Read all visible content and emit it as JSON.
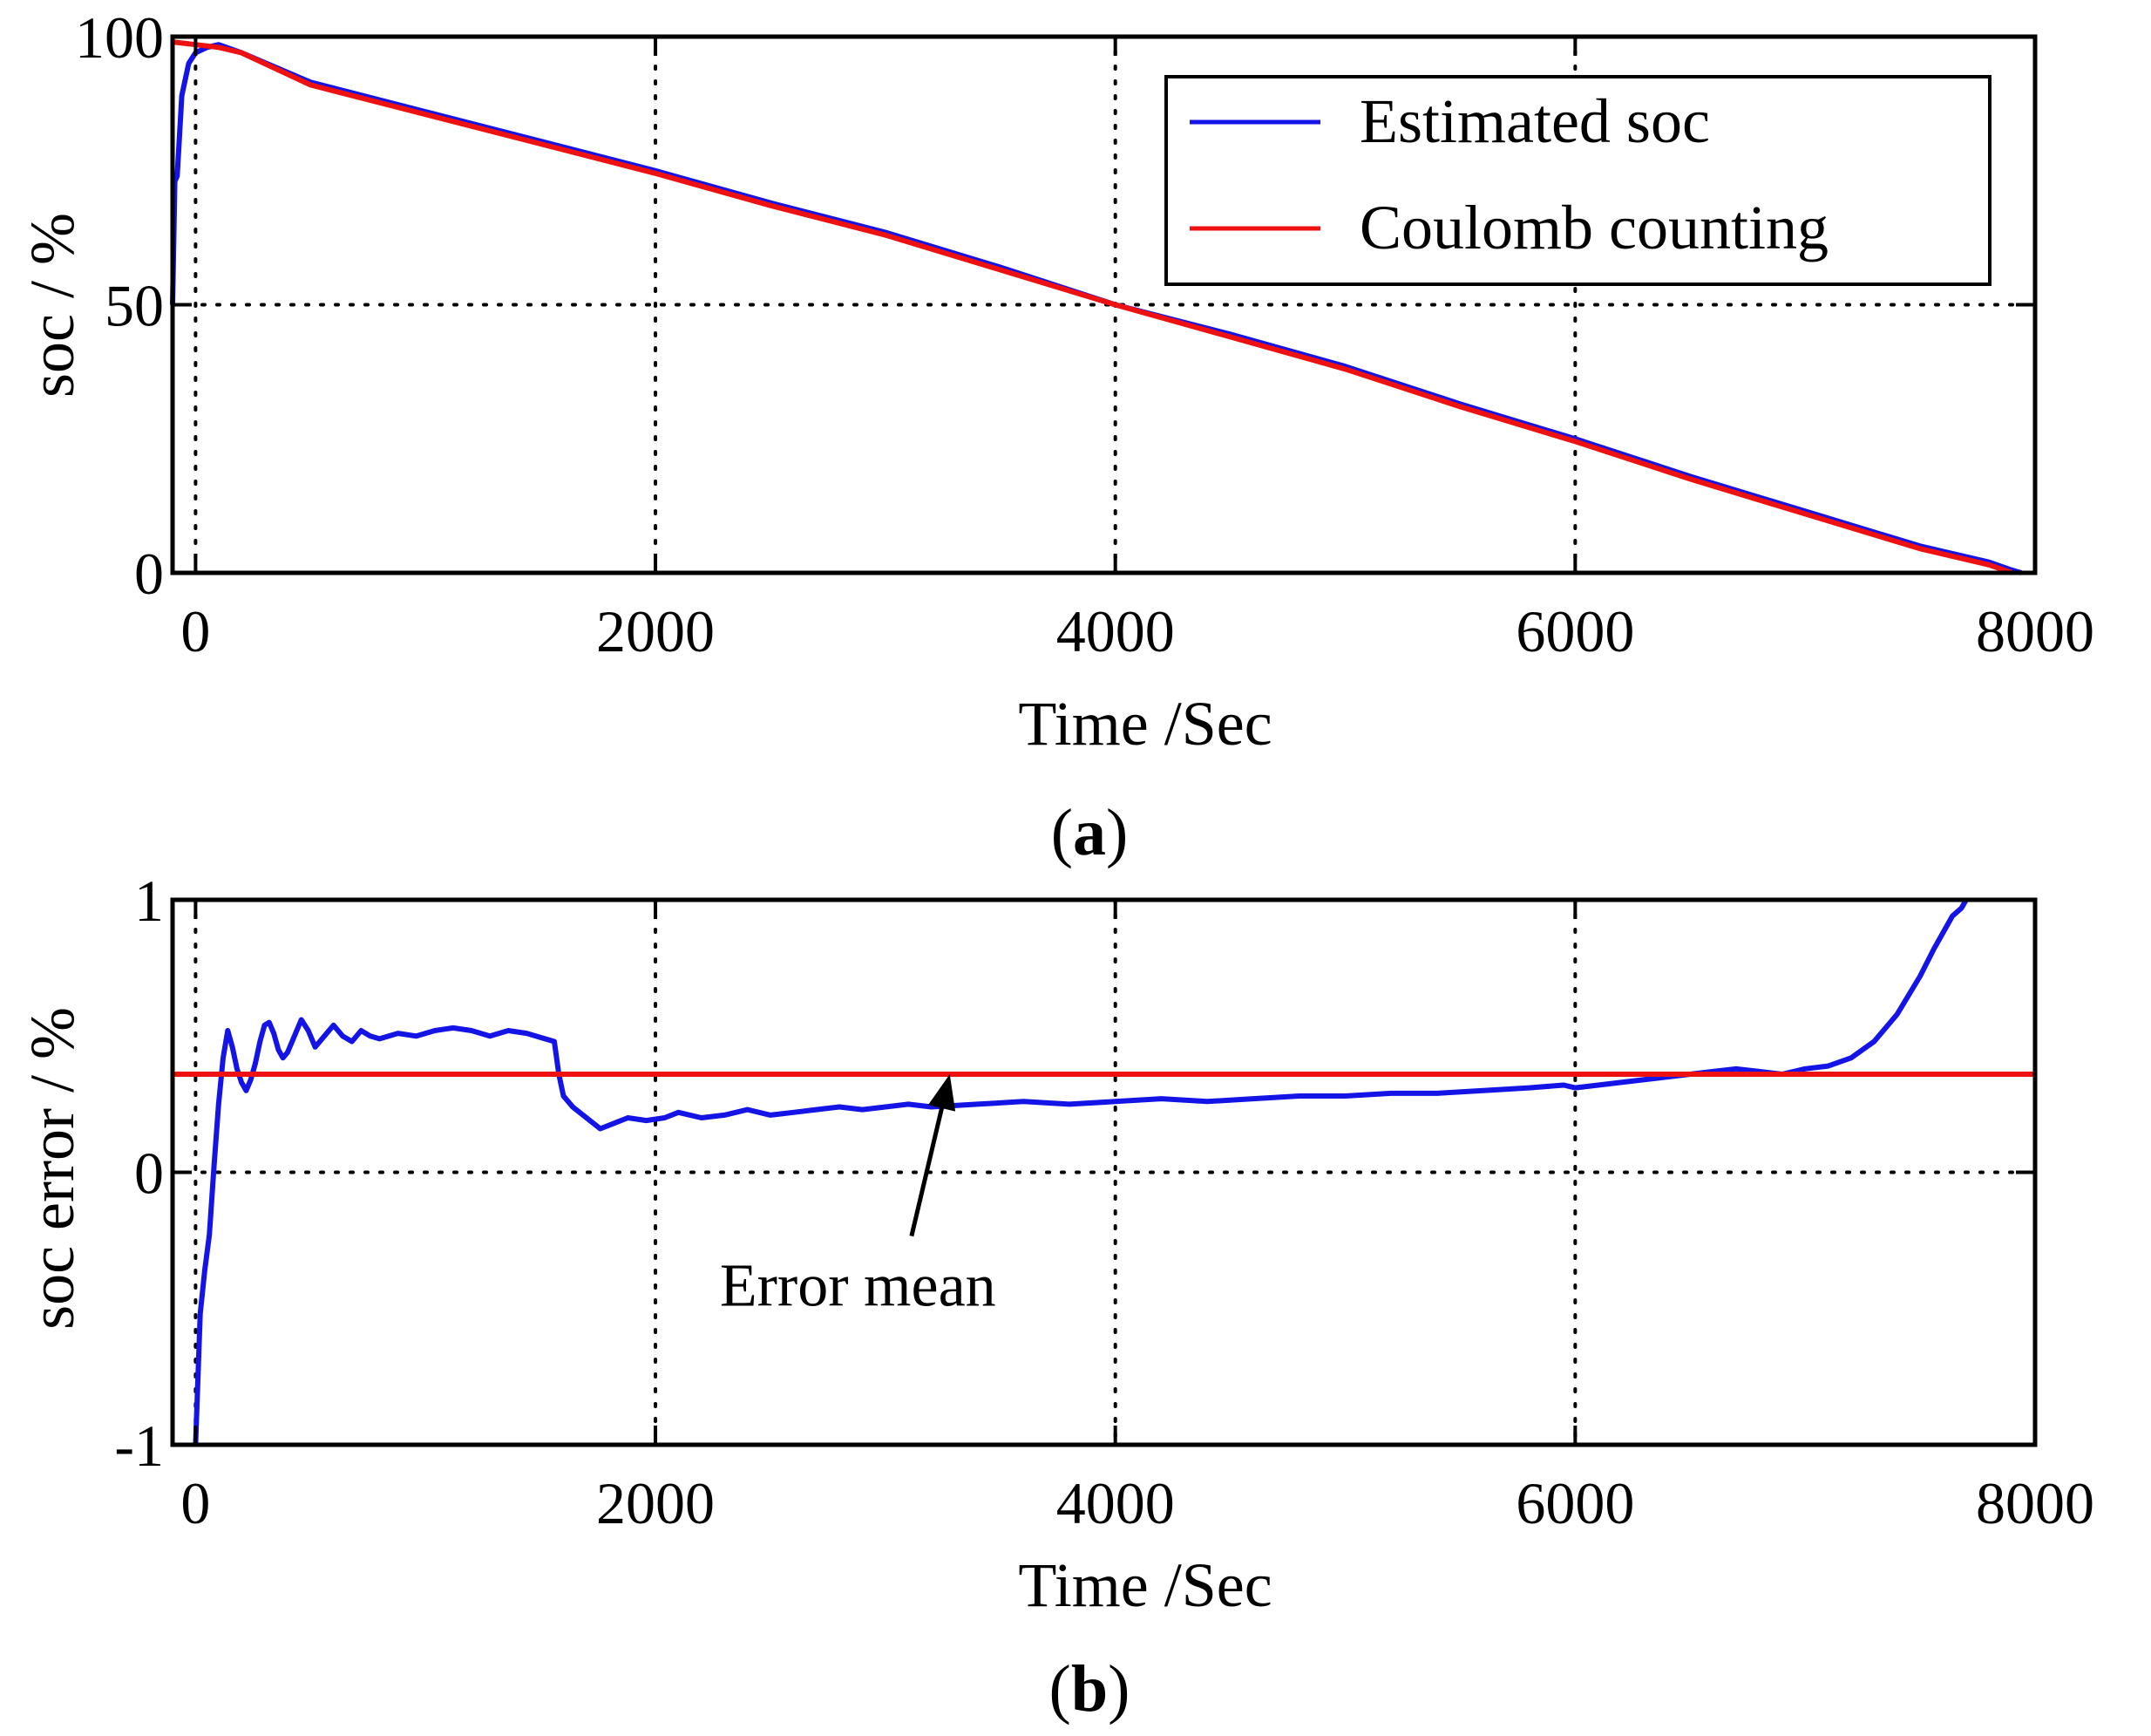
{
  "colors": {
    "estimated": "#1414e6",
    "coulomb": "#ee1111",
    "mean": "#ee1111",
    "axes": "#000000"
  },
  "chart_data": [
    {
      "id": "a",
      "type": "line",
      "panel_label": "a",
      "xlabel": "Time /Sec",
      "ylabel": "soc / %",
      "xlim": [
        -100,
        8000
      ],
      "ylim": [
        0,
        100
      ],
      "xticks": [
        0,
        2000,
        4000,
        6000,
        8000
      ],
      "xtick_labels": [
        "0",
        "2000",
        "4000",
        "6000",
        "8000"
      ],
      "yticks": [
        0,
        50,
        100
      ],
      "ytick_labels": [
        "0",
        "50",
        "100"
      ],
      "grid": true,
      "legend_position": "top-right",
      "series": [
        {
          "name": "Estimated soc",
          "color_key": "estimated",
          "x": [
            -100,
            -90,
            -80,
            -60,
            -30,
            0,
            50,
            100,
            200,
            500,
            1000,
            1500,
            2000,
            2500,
            3000,
            3500,
            4000,
            4500,
            5000,
            5500,
            6000,
            6500,
            7000,
            7500,
            7800,
            7900,
            7940
          ],
          "y": [
            50,
            73,
            74,
            89,
            95,
            97,
            98,
            98.5,
            97,
            91.5,
            86,
            80.5,
            75,
            69,
            63.5,
            57,
            50,
            44.5,
            38.5,
            31.5,
            25,
            18,
            11.5,
            5,
            2,
            0.5,
            0
          ]
        },
        {
          "name": "Coulomb counting",
          "color_key": "coulomb",
          "x": [
            -100,
            0,
            100,
            200,
            500,
            1000,
            1500,
            2000,
            2500,
            3000,
            3500,
            4000,
            4500,
            5000,
            5500,
            6000,
            6500,
            7000,
            7500,
            7800,
            7900
          ],
          "y": [
            99,
            98.5,
            98,
            97,
            91,
            85.5,
            80,
            74.5,
            68.5,
            63,
            56.5,
            50,
            44,
            38,
            31,
            24.5,
            17.5,
            11,
            4.5,
            1.5,
            0
          ]
        }
      ]
    },
    {
      "id": "b",
      "type": "line",
      "panel_label": "b",
      "xlabel": "Time /Sec",
      "ylabel": "soc error / %",
      "xlim": [
        -100,
        8000
      ],
      "ylim": [
        -1,
        1
      ],
      "xticks": [
        0,
        2000,
        4000,
        6000,
        8000
      ],
      "xtick_labels": [
        "0",
        "2000",
        "4000",
        "6000",
        "8000"
      ],
      "yticks": [
        -1,
        0,
        1
      ],
      "ytick_labels": [
        "-1",
        "0",
        "1"
      ],
      "grid": true,
      "annotation": {
        "text": "Error mean",
        "x": 3000,
        "y": -0.49,
        "arrow_to": [
          3280,
          0.36
        ]
      },
      "series": [
        {
          "name": "soc error",
          "color_key": "estimated",
          "x": [
            0,
            20,
            40,
            60,
            80,
            100,
            120,
            140,
            160,
            180,
            200,
            220,
            240,
            260,
            280,
            300,
            320,
            340,
            360,
            380,
            400,
            430,
            460,
            490,
            520,
            560,
            600,
            640,
            680,
            720,
            760,
            800,
            880,
            960,
            1040,
            1120,
            1200,
            1280,
            1360,
            1440,
            1520,
            1560,
            1580,
            1600,
            1640,
            1700,
            1760,
            1820,
            1880,
            1960,
            2040,
            2100,
            2200,
            2300,
            2400,
            2500,
            2600,
            2700,
            2800,
            2900,
            3000,
            3100,
            3200,
            3400,
            3600,
            3800,
            4000,
            4200,
            4400,
            4600,
            4800,
            5000,
            5200,
            5400,
            5600,
            5800,
            5950,
            6000,
            6200,
            6400,
            6600,
            6700,
            6800,
            6900,
            7000,
            7100,
            7200,
            7300,
            7400,
            7500,
            7560,
            7600,
            7640,
            7680,
            7700
          ],
          "y": [
            -1,
            -0.52,
            -0.36,
            -0.23,
            0.02,
            0.25,
            0.42,
            0.52,
            0.46,
            0.38,
            0.33,
            0.3,
            0.34,
            0.4,
            0.48,
            0.54,
            0.55,
            0.51,
            0.45,
            0.42,
            0.44,
            0.5,
            0.56,
            0.52,
            0.46,
            0.5,
            0.54,
            0.5,
            0.48,
            0.52,
            0.5,
            0.49,
            0.51,
            0.5,
            0.52,
            0.53,
            0.52,
            0.5,
            0.52,
            0.51,
            0.49,
            0.48,
            0.36,
            0.28,
            0.24,
            0.2,
            0.16,
            0.18,
            0.2,
            0.19,
            0.2,
            0.22,
            0.2,
            0.21,
            0.23,
            0.21,
            0.22,
            0.23,
            0.24,
            0.23,
            0.24,
            0.25,
            0.24,
            0.25,
            0.26,
            0.25,
            0.26,
            0.27,
            0.26,
            0.27,
            0.28,
            0.28,
            0.29,
            0.29,
            0.3,
            0.31,
            0.32,
            0.31,
            0.33,
            0.35,
            0.37,
            0.38,
            0.37,
            0.36,
            0.38,
            0.39,
            0.42,
            0.48,
            0.58,
            0.72,
            0.82,
            0.88,
            0.94,
            0.97,
            1.0
          ]
        },
        {
          "name": "Error mean",
          "color_key": "mean",
          "x": [
            -100,
            8000
          ],
          "y": [
            0.36,
            0.36
          ]
        }
      ]
    }
  ]
}
